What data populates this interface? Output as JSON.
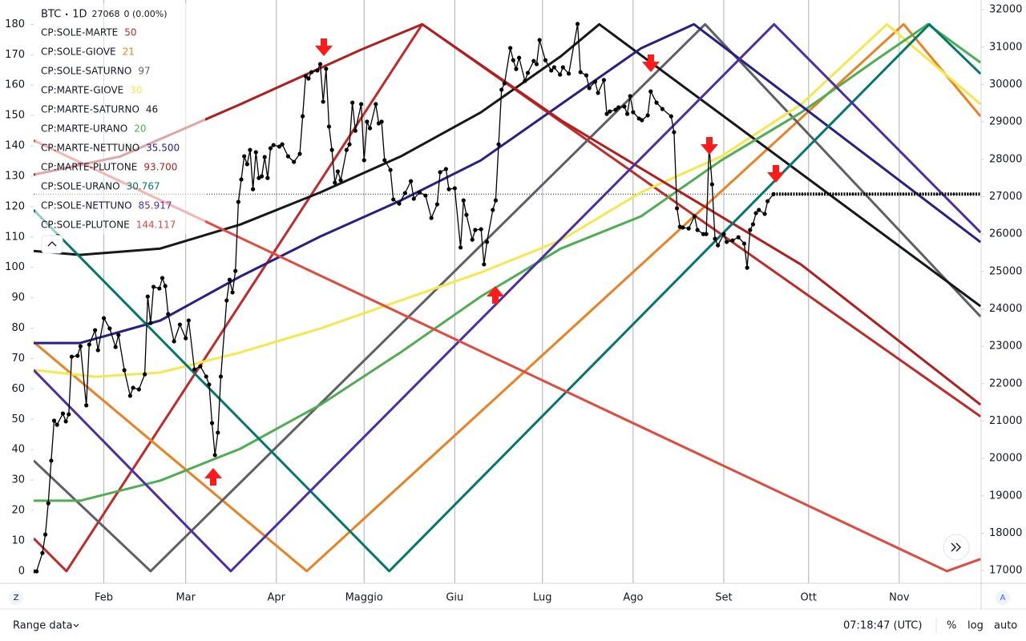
{
  "chart_data": {
    "type": "line",
    "interval": "1D",
    "last_price": 27068,
    "change": "0 (0.00%)",
    "xlim": [
      0,
      324
    ],
    "xticks": [
      {
        "value": 24,
        "label": "Feb"
      },
      {
        "value": 52,
        "label": "Mar"
      },
      {
        "value": 83,
        "label": "Apr"
      },
      {
        "value": 113,
        "label": "Maggio"
      },
      {
        "value": 144,
        "label": "Giu"
      },
      {
        "value": 174,
        "label": "Lug"
      },
      {
        "value": 205,
        "label": "Ago"
      },
      {
        "value": 236,
        "label": "Set"
      },
      {
        "value": 265,
        "label": "Ott"
      },
      {
        "value": 296,
        "label": "Nov"
      }
    ],
    "ylim": [
      -4,
      188
    ],
    "yticks": [
      0,
      10,
      20,
      30,
      40,
      50,
      60,
      70,
      80,
      90,
      100,
      110,
      120,
      130,
      140,
      150,
      160,
      170,
      180
    ],
    "y2lim": [
      16660,
      32260
    ],
    "y2ticks": [
      17000,
      18000,
      19000,
      20000,
      21000,
      22000,
      23000,
      24000,
      25000,
      26000,
      27000,
      28000,
      29000,
      30000,
      31000,
      32000
    ],
    "grid": true,
    "series": [
      {
        "name": "BTC",
        "color": "#000000",
        "axis": "y2",
        "markers": true,
        "x": [
          0,
          1,
          3,
          4,
          5,
          6,
          7,
          8,
          10,
          11,
          12,
          13,
          15,
          16,
          18,
          19,
          21,
          22,
          24,
          26,
          28,
          29,
          31,
          33,
          34,
          36,
          38,
          39,
          40,
          41,
          43,
          44,
          45,
          46,
          48,
          50,
          52,
          53,
          55,
          57,
          59,
          60,
          61,
          62,
          63,
          64,
          66,
          67,
          68,
          69,
          70,
          71,
          72,
          73,
          74,
          75,
          76,
          77,
          78,
          79,
          80,
          81,
          82,
          84,
          85,
          87,
          89,
          91,
          92,
          93,
          94,
          95,
          97,
          98,
          99,
          100,
          101,
          102,
          103,
          104,
          105,
          107,
          108,
          109,
          110,
          112,
          113,
          114,
          115,
          117,
          118,
          119,
          120,
          122,
          123,
          125,
          127,
          129,
          130,
          132,
          134,
          136,
          138,
          139,
          141,
          142,
          144,
          146,
          147,
          148,
          150,
          151,
          153,
          154,
          155,
          157,
          158,
          159,
          160,
          161,
          163,
          164,
          165,
          166,
          168,
          169,
          171,
          172,
          173,
          175,
          177,
          178,
          180,
          181,
          183,
          186,
          187,
          189,
          190,
          192,
          193,
          195,
          196,
          197,
          199,
          200,
          202,
          203,
          204,
          205,
          207,
          208,
          210,
          211,
          213,
          215,
          218,
          219,
          220,
          221,
          222,
          224,
          226,
          227,
          229,
          230,
          231,
          232,
          233,
          234,
          236,
          237,
          239,
          241,
          243,
          244,
          245,
          246,
          247,
          248,
          250,
          251,
          253
        ],
        "values": [
          16980,
          16980,
          17470,
          17965,
          18800,
          19940,
          21010,
          20900,
          21200,
          20990,
          21180,
          22720,
          22745,
          23000,
          21420,
          23045,
          23430,
          22895,
          23750,
          23475,
          22980,
          23300,
          22360,
          21675,
          21890,
          21845,
          22250,
          24330,
          23620,
          24590,
          24545,
          24825,
          24610,
          23860,
          23130,
          23580,
          23215,
          23690,
          22380,
          22465,
          22190,
          21975,
          20945,
          20090,
          20690,
          22190,
          24225,
          24780,
          24440,
          25015,
          26860,
          27460,
          28080,
          27870,
          28250,
          27200,
          28190,
          27500,
          27545,
          28060,
          27500,
          28295,
          28380,
          28340,
          28400,
          28080,
          27930,
          28145,
          29150,
          30225,
          30160,
          30330,
          30375,
          30545,
          29540,
          30420,
          28875,
          28250,
          27375,
          27675,
          27440,
          28250,
          28400,
          29515,
          28765,
          29475,
          27975,
          29005,
          28830,
          29475,
          28960,
          29005,
          27975,
          27715,
          26925,
          26815,
          27095,
          27415,
          26945,
          27115,
          27030,
          26430,
          26795,
          27655,
          27740,
          27200,
          27225,
          25640,
          26900,
          26515,
          25850,
          26110,
          26130,
          25190,
          25790,
          26645,
          26900,
          28400,
          29860,
          30030,
          30975,
          30650,
          30415,
          30715,
          30095,
          30310,
          30630,
          30545,
          31190,
          30650,
          30375,
          30460,
          30265,
          30460,
          30290,
          31620,
          30330,
          30245,
          29905,
          30075,
          29775,
          30120,
          29215,
          29280,
          29325,
          29390,
          29410,
          29215,
          29690,
          29260,
          29090,
          29045,
          29175,
          29815,
          29515,
          29345,
          29150,
          28725,
          26690,
          26195,
          26175,
          26150,
          26475,
          26110,
          26000,
          26000,
          28360,
          27330,
          25875,
          25700,
          26000,
          25790,
          25830,
          25915,
          25745,
          25100,
          26110,
          26260,
          26560,
          26645,
          26540,
          26880,
          27068
        ]
      },
      {
        "name": "CP:SOLE-MARTE",
        "legend_value": "50",
        "color": "#c62828",
        "x": [
          0,
          11.2,
          132.9,
          323.8
        ],
        "values": [
          10.8,
          0,
          180,
          50.9
        ]
      },
      {
        "name": "CP:SOLE-GIOVE",
        "legend_value": "21",
        "color": "#f0801e",
        "x": [
          0,
          93.4,
          297.5,
          323.8
        ],
        "values": [
          75.4,
          0,
          180,
          149.7
        ]
      },
      {
        "name": "CP:SOLE-SATURNO",
        "legend_value": "97",
        "color": "#5f5f66",
        "x": [
          0,
          40,
          229.6,
          323.8
        ],
        "values": [
          36.4,
          0,
          180,
          83.8
        ]
      },
      {
        "name": "CP:MARTE-GIOVE",
        "legend_value": "30",
        "color": "#f7e84a",
        "x": [
          0,
          21.4,
          43.3,
          70.7,
          98.1,
          125.5,
          152.9,
          180.3,
          207.7,
          235.1,
          262.5,
          291.8,
          323.8
        ],
        "values": [
          66.2,
          64.0,
          65.4,
          72.0,
          79.9,
          89.1,
          98.3,
          108.9,
          124.7,
          136.5,
          153.7,
          180,
          153.7
        ]
      },
      {
        "name": "CP:MARTE-SATURNO",
        "legend_value": "46",
        "color": "#16181c",
        "x": [
          0,
          15.9,
          43.3,
          70.7,
          98.1,
          125.5,
          152.9,
          180.3,
          193.4,
          323.8
        ],
        "values": [
          105.4,
          104.1,
          106.2,
          114.1,
          124.7,
          136.5,
          151.0,
          169.5,
          180,
          87.2
        ]
      },
      {
        "name": "CP:MARTE-URANO",
        "legend_value": "20",
        "color": "#4caf50",
        "x": [
          0,
          15.9,
          43.3,
          70.7,
          98.1,
          125.5,
          152.9,
          180.3,
          207.7,
          235.1,
          262.5,
          289.9,
          305.8,
          323.8
        ],
        "values": [
          23.2,
          23.2,
          29.8,
          40.3,
          54.8,
          72.0,
          90.4,
          106.2,
          116.8,
          135.2,
          151.0,
          169.5,
          180,
          167.4
        ]
      },
      {
        "name": "CP:MARTE-NETTUNO",
        "legend_value": "35.500",
        "color": "#27208a",
        "x": [
          0,
          15.9,
          43.3,
          70.7,
          98.1,
          125.5,
          152.9,
          180.3,
          207.7,
          225.8,
          323.8
        ],
        "values": [
          75.1,
          75.1,
          82.5,
          97.0,
          110.2,
          122.0,
          135.2,
          153.7,
          172.1,
          180,
          108.3
        ]
      },
      {
        "name": "CP:MARTE-PLUTONE",
        "legend_value": "93.700",
        "color": "#b71c1c",
        "x": [
          0,
          29.6,
          70.7,
          111.8,
          132.9,
          180.3,
          262.5,
          323.8
        ],
        "values": [
          130.5,
          136.5,
          153.7,
          171.6,
          180,
          148.4,
          100.9,
          54.8
        ]
      },
      {
        "name": "CP:SOLE-URANO",
        "legend_value": "30.767",
        "color": "#00796b",
        "x": [
          0,
          121.6,
          306.3,
          323.8
        ],
        "values": [
          118.9,
          0,
          180,
          163.7
        ]
      },
      {
        "name": "CP:SOLE-NETTUNO",
        "legend_value": "85.917",
        "color": "#4a2fa8",
        "x": [
          0,
          67.4,
          253.2,
          323.8
        ],
        "values": [
          66.2,
          0,
          180,
          111.5
        ]
      },
      {
        "name": "CP:SOLE-PLUTONE",
        "legend_value": "144.117",
        "color": "#e8473b",
        "x": [
          0,
          312.3,
          323.8
        ],
        "values": [
          141.8,
          0,
          4
        ]
      }
    ]
  },
  "ui": {
    "range_label": "Range data",
    "time": "07:18:47 (UTC)",
    "percent": "%",
    "log": "log",
    "auto": "auto",
    "left_button": "Z",
    "right_button": "A"
  }
}
